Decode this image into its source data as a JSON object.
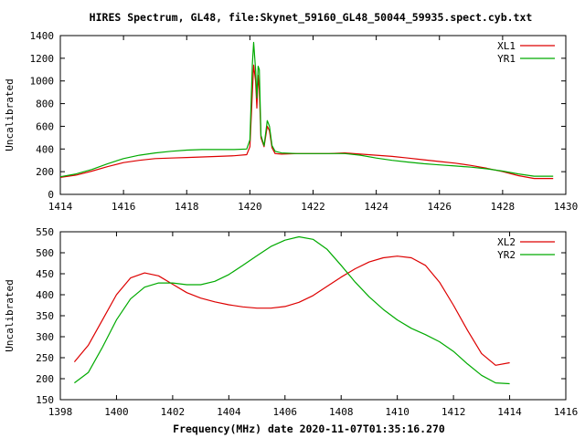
{
  "title": "HIRES Spectrum, GL48, file:Skynet_59160_GL48_50044_59935.spect.cyb.txt",
  "xlabel": "Frequency(MHz) date 2020-11-07T01:35:16.270",
  "colors": {
    "red": "#dd0000",
    "green": "#00aa00"
  },
  "chart_data": [
    {
      "type": "line",
      "xlabel": "",
      "ylabel": "Uncalibrated",
      "xlim": [
        1414,
        1430
      ],
      "ylim": [
        0,
        1400
      ],
      "xticks": [
        "1414",
        "1416",
        "1418",
        "1420",
        "1422",
        "1424",
        "1426",
        "1428",
        "1430"
      ],
      "yticks": [
        "0",
        "200",
        "400",
        "600",
        "800",
        "1000",
        "1200",
        "1400"
      ],
      "legend": "top-right",
      "grid": false,
      "series": [
        {
          "name": "XL1",
          "color": "#dd0000",
          "x": [
            1414.0,
            1414.5,
            1415.0,
            1415.5,
            1416.0,
            1416.5,
            1417.0,
            1417.5,
            1418.0,
            1418.5,
            1419.0,
            1419.5,
            1419.9,
            1420.0,
            1420.08,
            1420.12,
            1420.18,
            1420.22,
            1420.26,
            1420.3,
            1420.35,
            1420.45,
            1420.55,
            1420.62,
            1420.7,
            1420.8,
            1421.0,
            1421.5,
            1422.0,
            1422.5,
            1423.0,
            1423.5,
            1424.0,
            1424.5,
            1425.0,
            1425.5,
            1426.0,
            1426.5,
            1427.0,
            1427.5,
            1428.0,
            1428.5,
            1429.0,
            1429.6
          ],
          "y": [
            150,
            170,
            205,
            245,
            280,
            300,
            315,
            320,
            325,
            330,
            335,
            340,
            350,
            420,
            900,
            1140,
            1000,
            760,
            1050,
            920,
            500,
            420,
            600,
            560,
            410,
            360,
            355,
            360,
            360,
            360,
            365,
            355,
            345,
            335,
            320,
            305,
            290,
            275,
            255,
            230,
            200,
            165,
            140,
            140
          ]
        },
        {
          "name": "YR1",
          "color": "#00aa00",
          "x": [
            1414.0,
            1414.5,
            1415.0,
            1415.5,
            1416.0,
            1416.5,
            1417.0,
            1417.5,
            1418.0,
            1418.5,
            1419.0,
            1419.5,
            1419.9,
            1420.0,
            1420.08,
            1420.12,
            1420.18,
            1420.22,
            1420.26,
            1420.3,
            1420.35,
            1420.45,
            1420.55,
            1420.62,
            1420.7,
            1420.8,
            1421.0,
            1421.5,
            1422.0,
            1422.5,
            1423.0,
            1423.5,
            1424.0,
            1424.5,
            1425.0,
            1425.5,
            1426.0,
            1426.5,
            1427.0,
            1427.5,
            1428.0,
            1428.5,
            1429.0,
            1429.6
          ],
          "y": [
            155,
            180,
            220,
            270,
            315,
            345,
            365,
            380,
            390,
            395,
            395,
            395,
            400,
            480,
            1150,
            1340,
            1100,
            850,
            1130,
            1100,
            520,
            430,
            650,
            600,
            430,
            380,
            365,
            360,
            360,
            360,
            360,
            345,
            320,
            300,
            285,
            270,
            260,
            250,
            240,
            225,
            205,
            180,
            160,
            160
          ]
        }
      ]
    },
    {
      "type": "line",
      "xlabel": "Frequency(MHz) date 2020-11-07T01:35:16.270",
      "ylabel": "Uncalibrated",
      "xlim": [
        1398,
        1416
      ],
      "ylim": [
        150,
        550
      ],
      "xticks": [
        "1398",
        "1400",
        "1402",
        "1404",
        "1406",
        "1408",
        "1410",
        "1412",
        "1414",
        "1416"
      ],
      "yticks": [
        "150",
        "200",
        "250",
        "300",
        "350",
        "400",
        "450",
        "500",
        "550"
      ],
      "legend": "top-right",
      "grid": false,
      "series": [
        {
          "name": "XL2",
          "color": "#dd0000",
          "x": [
            1398.5,
            1399.0,
            1399.5,
            1400.0,
            1400.5,
            1401.0,
            1401.5,
            1402.0,
            1402.5,
            1403.0,
            1403.5,
            1404.0,
            1404.5,
            1405.0,
            1405.5,
            1406.0,
            1406.5,
            1407.0,
            1407.5,
            1408.0,
            1408.5,
            1409.0,
            1409.5,
            1410.0,
            1410.5,
            1411.0,
            1411.5,
            1412.0,
            1412.5,
            1413.0,
            1413.5,
            1414.0
          ],
          "y": [
            240,
            280,
            340,
            400,
            440,
            452,
            445,
            425,
            405,
            392,
            383,
            376,
            371,
            368,
            368,
            372,
            382,
            398,
            420,
            442,
            462,
            478,
            488,
            492,
            488,
            470,
            430,
            375,
            315,
            260,
            232,
            238
          ]
        },
        {
          "name": "YR2",
          "color": "#00aa00",
          "x": [
            1398.5,
            1399.0,
            1399.5,
            1400.0,
            1400.5,
            1401.0,
            1401.5,
            1402.0,
            1402.5,
            1403.0,
            1403.5,
            1404.0,
            1404.5,
            1405.0,
            1405.5,
            1406.0,
            1406.5,
            1407.0,
            1407.5,
            1408.0,
            1408.5,
            1409.0,
            1409.5,
            1410.0,
            1410.5,
            1411.0,
            1411.5,
            1412.0,
            1412.5,
            1413.0,
            1413.5,
            1414.0
          ],
          "y": [
            190,
            215,
            275,
            340,
            390,
            418,
            428,
            428,
            424,
            424,
            432,
            448,
            470,
            493,
            515,
            530,
            538,
            532,
            508,
            470,
            430,
            395,
            365,
            340,
            320,
            305,
            288,
            265,
            235,
            208,
            190,
            188
          ]
        }
      ]
    }
  ]
}
